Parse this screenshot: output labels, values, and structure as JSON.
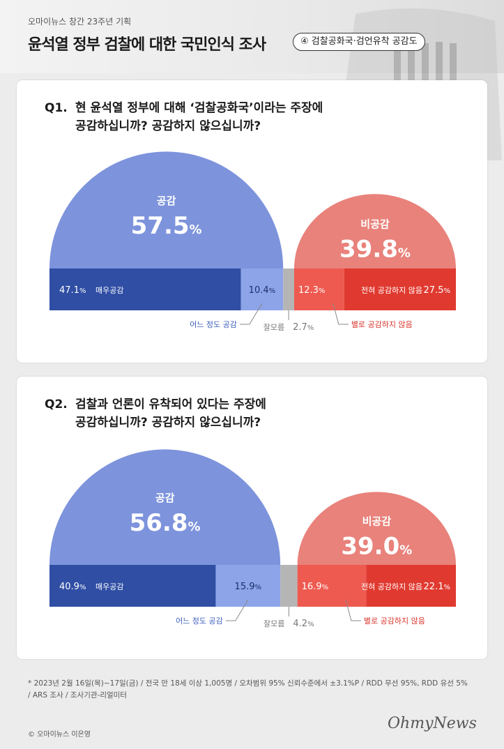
{
  "header": {
    "kicker": "오마이뉴스 창간 23주년 기획",
    "title": "윤석열 정부 검찰에 대한 국민인식 조사",
    "badge": "④ 검찰공화국·검언유착 공감도"
  },
  "questions": [
    {
      "number": "Q1.",
      "line1": "현 윤석열 정부에 대해 ‘검찰공화국’이라는 주장에",
      "line2": "공감하십니까? 공감하지 않으십니까?"
    },
    {
      "number": "Q2.",
      "line1": "검찰과 언론이 유착되어 있다는 주장에",
      "line2": "공감하십니까? 공감하지 않으십니까?"
    }
  ],
  "colors": {
    "agree_light": "#7d93dc",
    "agree_dark": "#2f4ea4",
    "agree_mid": "#8da4e8",
    "dont_know": "#b5b5b5",
    "disagree_light": "#e8827b",
    "disagree_mid": "#ee5a50",
    "disagree_dark": "#e03a30",
    "label_blue": "#3e5fbf",
    "label_red": "#d8362c"
  },
  "chart_data": [
    {
      "type": "bar",
      "title": "Q1",
      "agree_label": "공감",
      "agree_total": 57.5,
      "disagree_label": "비공감",
      "disagree_total": 39.8,
      "unit": "%",
      "segments": [
        {
          "name": "매우공감",
          "value": 47.1
        },
        {
          "name": "어느 정도 공감",
          "value": 10.4
        },
        {
          "name": "잘모름",
          "value": 2.7
        },
        {
          "name": "별로 공감하지 않음",
          "value": 12.3
        },
        {
          "name": "전혀 공감하지 않음",
          "value": 27.5
        }
      ]
    },
    {
      "type": "bar",
      "title": "Q2",
      "agree_label": "공감",
      "agree_total": 56.8,
      "disagree_label": "비공감",
      "disagree_total": 39.0,
      "unit": "%",
      "segments": [
        {
          "name": "매우공감",
          "value": 40.9
        },
        {
          "name": "어느 정도 공감",
          "value": 15.9
        },
        {
          "name": "잘모름",
          "value": 4.2
        },
        {
          "name": "별로 공감하지 않음",
          "value": 16.9
        },
        {
          "name": "전혀 공감하지 않음",
          "value": 22.1
        }
      ]
    }
  ],
  "footnote": {
    "line1": "* 2023년 2월 16일(목)~17일(금) / 전국 만 18세 이상 1,005명 / 오차범위 95% 신뢰수준에서 ±3.1%P / RDD 무선 95%, RDD 유선 5%",
    "line2": "/ ARS 조사 / 조사기관-리얼미터"
  },
  "credit": "© 오마이뉴스 이은영",
  "logo": "OhmyNews"
}
